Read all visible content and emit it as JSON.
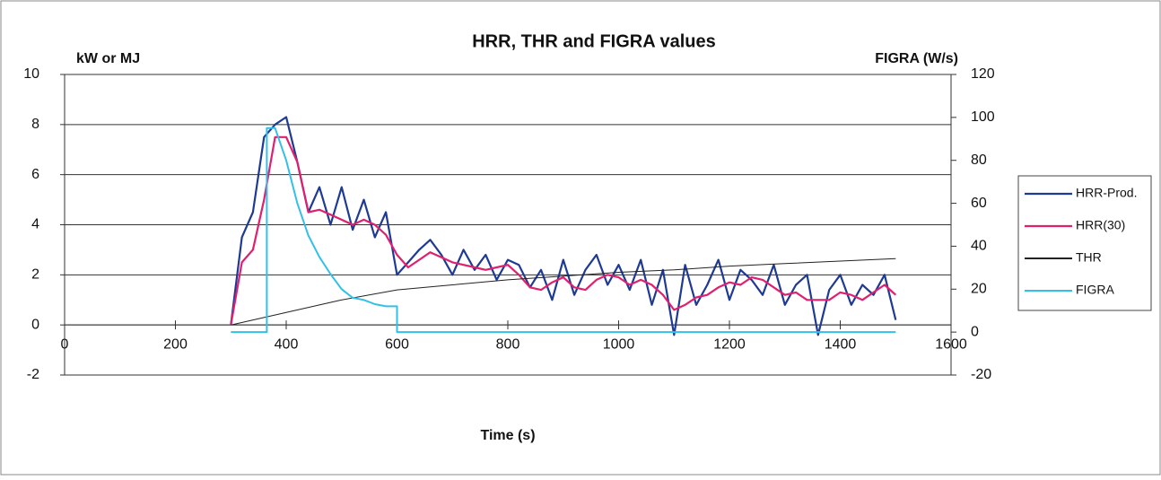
{
  "chart_data": {
    "type": "line",
    "title": "HRR, THR and FIGRA values",
    "y_label": "kW or MJ",
    "y2_label": "FIGRA (W/s)",
    "x_label": "Time (s)",
    "x": [
      300,
      320,
      340,
      360,
      380,
      400,
      420,
      440,
      460,
      480,
      500,
      520,
      540,
      560,
      580,
      600,
      620,
      640,
      660,
      680,
      700,
      720,
      740,
      760,
      780,
      800,
      820,
      840,
      860,
      880,
      900,
      920,
      940,
      960,
      980,
      1000,
      1020,
      1040,
      1060,
      1080,
      1100,
      1120,
      1140,
      1160,
      1180,
      1200,
      1220,
      1240,
      1260,
      1280,
      1300,
      1320,
      1340,
      1360,
      1380,
      1400,
      1420,
      1440,
      1460,
      1480,
      1500
    ],
    "series": [
      {
        "name": "HRR-Prod.",
        "color": "#1f3a93",
        "width": 2.2,
        "values": [
          0,
          3.5,
          4.5,
          7.5,
          8.0,
          8.3,
          6.5,
          4.5,
          5.5,
          4.0,
          5.5,
          3.8,
          5.0,
          3.5,
          4.5,
          2.0,
          2.5,
          3.0,
          3.4,
          2.8,
          2.0,
          3.0,
          2.2,
          2.8,
          1.8,
          2.6,
          2.4,
          1.5,
          2.2,
          1.0,
          2.6,
          1.2,
          2.2,
          2.8,
          1.6,
          2.4,
          1.4,
          2.6,
          0.8,
          2.2,
          -0.4,
          2.4,
          0.8,
          1.6,
          2.6,
          1.0,
          2.2,
          1.8,
          1.2,
          2.4,
          0.8,
          1.6,
          2.0,
          -0.4,
          1.4,
          2.0,
          0.8,
          1.6,
          1.2,
          2.0,
          0.2
        ]
      },
      {
        "name": "HRR(30)",
        "color": "#e0206e",
        "width": 2.2,
        "values": [
          0,
          2.5,
          3.0,
          5.0,
          7.5,
          7.5,
          6.5,
          4.5,
          4.6,
          4.4,
          4.2,
          4.0,
          4.2,
          4.0,
          3.6,
          2.8,
          2.3,
          2.6,
          2.9,
          2.7,
          2.5,
          2.4,
          2.3,
          2.2,
          2.3,
          2.4,
          2.0,
          1.5,
          1.4,
          1.7,
          1.9,
          1.5,
          1.4,
          1.8,
          2.0,
          1.9,
          1.6,
          1.8,
          1.6,
          1.2,
          0.6,
          0.8,
          1.1,
          1.2,
          1.5,
          1.7,
          1.6,
          1.9,
          1.8,
          1.5,
          1.2,
          1.3,
          1.0,
          1.0,
          1.0,
          1.3,
          1.2,
          1.0,
          1.3,
          1.6,
          1.2
        ]
      },
      {
        "name": "THR",
        "color": "#222222",
        "width": 1,
        "x": [
          300,
          400,
          500,
          600,
          700,
          800,
          900,
          1000,
          1100,
          1200,
          1300,
          1400,
          1500
        ],
        "values": [
          0,
          0.5,
          1.0,
          1.4,
          1.6,
          1.8,
          1.95,
          2.1,
          2.2,
          2.35,
          2.45,
          2.55,
          2.65
        ]
      },
      {
        "name": "FIGRA",
        "color": "#33c0e8",
        "width": 2,
        "axis": "y2",
        "x": [
          300,
          365,
          365,
          380,
          400,
          420,
          440,
          460,
          480,
          500,
          520,
          540,
          560,
          580,
          600,
          600,
          1500
        ],
        "values": [
          0,
          0,
          95,
          95,
          80,
          60,
          45,
          35,
          27,
          20,
          16,
          15,
          13,
          12,
          12,
          0,
          0
        ]
      }
    ],
    "xlim": [
      0,
      1600
    ],
    "xticks": [
      0,
      200,
      400,
      600,
      800,
      1000,
      1200,
      1400,
      1600
    ],
    "ylim": [
      -2,
      10
    ],
    "yticks": [
      -2,
      0,
      2,
      4,
      6,
      8,
      10
    ],
    "y2lim": [
      -20,
      120
    ],
    "y2ticks": [
      -20,
      0,
      20,
      40,
      60,
      80,
      100,
      120
    ],
    "grid": true,
    "legend": "right"
  }
}
